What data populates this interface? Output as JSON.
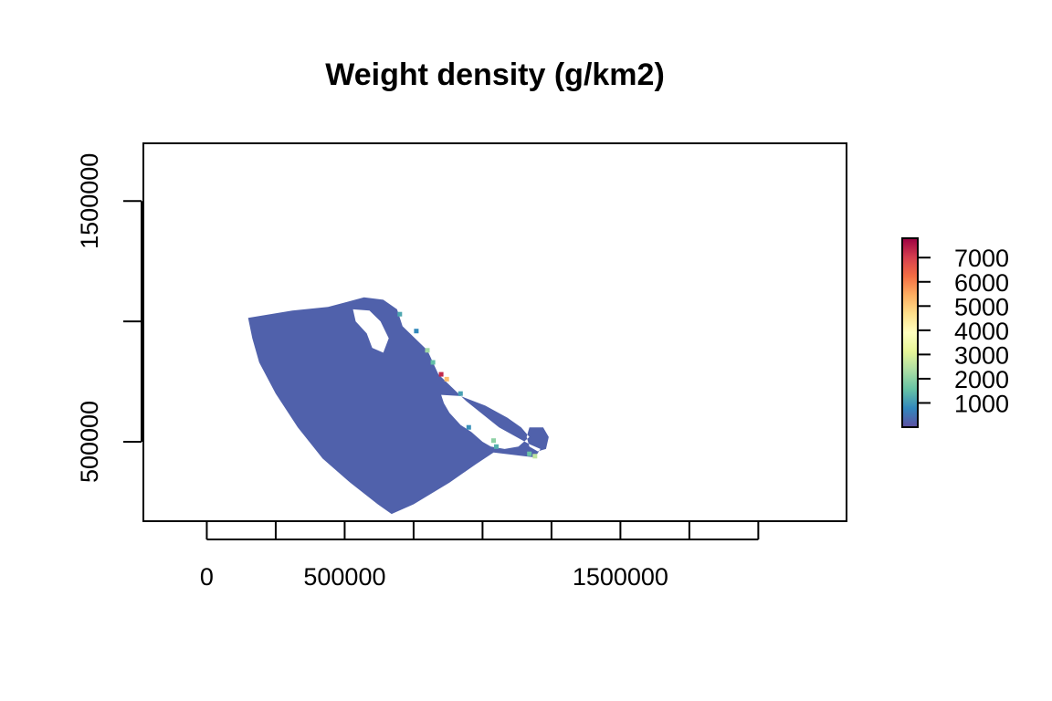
{
  "chart_data": {
    "type": "heatmap",
    "title": "Weight density (g/km2)",
    "xlabel": "",
    "ylabel": "",
    "x_ticks": [
      0,
      250000,
      500000,
      750000,
      1000000,
      1250000,
      1500000,
      1750000,
      2000000
    ],
    "x_tick_labels": [
      "0",
      "",
      "500000",
      "",
      "",
      "",
      "1500000",
      "",
      ""
    ],
    "y_ticks": [
      500000,
      1000000,
      1500000
    ],
    "y_tick_labels": [
      "500000",
      "",
      "1500000"
    ],
    "xlim": [
      -230000,
      2320000
    ],
    "ylim": [
      170000,
      1740000
    ],
    "colorbar": {
      "range": [
        0,
        7800
      ],
      "ticks": [
        1000,
        2000,
        3000,
        4000,
        5000,
        6000,
        7000
      ],
      "tick_labels": [
        "1000",
        "2000",
        "3000",
        "4000",
        "5000",
        "6000",
        "7000"
      ],
      "palette": "Spectral",
      "colors": [
        "#5E4FA2",
        "#3288BD",
        "#66C2A5",
        "#ABDDA4",
        "#E6F598",
        "#FFFFBF",
        "#FEE08B",
        "#FDAE61",
        "#F46D43",
        "#D53E4F",
        "#9E0142"
      ]
    },
    "region": {
      "dominant_value_range": [
        0,
        500
      ],
      "outline": [
        [
          150000,
          1015000
        ],
        [
          310000,
          1045000
        ],
        [
          440000,
          1060000
        ],
        [
          570000,
          1100000
        ],
        [
          640000,
          1090000
        ],
        [
          690000,
          1050000
        ],
        [
          710000,
          980000
        ],
        [
          800000,
          880000
        ],
        [
          840000,
          780000
        ],
        [
          940000,
          670000
        ],
        [
          1060000,
          560000
        ],
        [
          1170000,
          490000
        ],
        [
          1210000,
          470000
        ],
        [
          1190000,
          435000
        ],
        [
          1150000,
          440000
        ],
        [
          1040000,
          455000
        ],
        [
          980000,
          410000
        ],
        [
          880000,
          330000
        ],
        [
          750000,
          240000
        ],
        [
          670000,
          200000
        ],
        [
          620000,
          240000
        ],
        [
          520000,
          330000
        ],
        [
          420000,
          430000
        ],
        [
          330000,
          560000
        ],
        [
          250000,
          700000
        ],
        [
          190000,
          830000
        ],
        [
          165000,
          930000
        ]
      ],
      "land_islands": [
        {
          "name": "",
          "outline": [
            [
              530000,
              1050000
            ],
            [
              590000,
              1045000
            ],
            [
              630000,
              1000000
            ],
            [
              660000,
              930000
            ],
            [
              640000,
              870000
            ],
            [
              600000,
              890000
            ],
            [
              580000,
              950000
            ],
            [
              540000,
              1000000
            ]
          ]
        },
        {
          "name": "",
          "outline": [
            [
              850000,
              695000
            ],
            [
              920000,
              690000
            ],
            [
              1010000,
              650000
            ],
            [
              1090000,
              600000
            ],
            [
              1140000,
              560000
            ],
            [
              1170000,
              520000
            ],
            [
              1130000,
              480000
            ],
            [
              1080000,
              470000
            ],
            [
              1030000,
              480000
            ],
            [
              1000000,
              500000
            ],
            [
              960000,
              540000
            ],
            [
              920000,
              570000
            ],
            [
              880000,
              620000
            ],
            [
              860000,
              660000
            ]
          ]
        },
        {
          "name": "",
          "outline": [
            [
              1170000,
              560000
            ],
            [
              1220000,
              560000
            ],
            [
              1240000,
              520000
            ],
            [
              1230000,
              470000
            ],
            [
              1200000,
              460000
            ],
            [
              1170000,
              480000
            ],
            [
              1160000,
              520000
            ]
          ]
        }
      ],
      "hotspots": [
        {
          "x": 700000,
          "y": 1030000,
          "value": 1200
        },
        {
          "x": 800000,
          "y": 880000,
          "value": 2200
        },
        {
          "x": 850000,
          "y": 780000,
          "value": 7300
        },
        {
          "x": 870000,
          "y": 760000,
          "value": 5200
        },
        {
          "x": 820000,
          "y": 830000,
          "value": 1500
        },
        {
          "x": 920000,
          "y": 700000,
          "value": 1100
        },
        {
          "x": 1040000,
          "y": 505000,
          "value": 2000
        },
        {
          "x": 1050000,
          "y": 480000,
          "value": 1300
        },
        {
          "x": 1190000,
          "y": 440000,
          "value": 2600
        },
        {
          "x": 1170000,
          "y": 450000,
          "value": 1600
        },
        {
          "x": 950000,
          "y": 560000,
          "value": 900
        },
        {
          "x": 760000,
          "y": 960000,
          "value": 800
        }
      ]
    }
  }
}
